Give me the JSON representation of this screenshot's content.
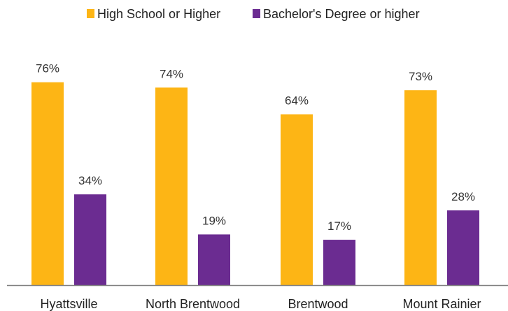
{
  "chart_data": {
    "type": "bar",
    "title": "",
    "xlabel": "",
    "ylabel": "",
    "ylim": [
      0,
      100
    ],
    "grid": false,
    "legend_position": "top",
    "value_suffix": "%",
    "categories": [
      "Hyattsville",
      "North Brentwood",
      "Brentwood",
      "Mount Rainier"
    ],
    "series": [
      {
        "name": "High School or Higher",
        "color": "#FDB515",
        "values": [
          76,
          74,
          64,
          73
        ]
      },
      {
        "name": "Bachelor's Degree or higher",
        "color": "#6B2C91",
        "values": [
          34,
          19,
          17,
          28
        ]
      }
    ]
  }
}
